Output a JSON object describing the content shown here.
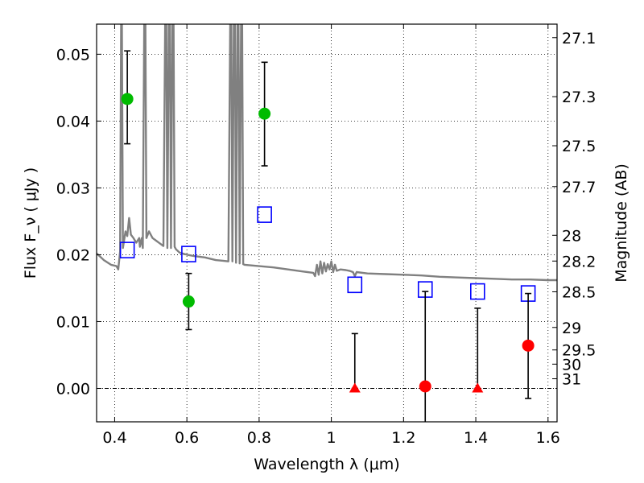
{
  "chart_data": {
    "type": "scatter",
    "xlabel": "Wavelength  λ (μm)",
    "ylabel": "Flux  F_ν  ( μJy )",
    "y2label": "Magnitude (AB)",
    "xlim": [
      0.35,
      1.625
    ],
    "ylim": [
      -0.005,
      0.0545
    ],
    "x_ticks": [
      "0.4",
      "0.6",
      "0.8",
      "1",
      "1.2",
      "1.4",
      "1.6"
    ],
    "x_tick_values": [
      0.4,
      0.6,
      0.8,
      1.0,
      1.2,
      1.4,
      1.6
    ],
    "y_ticks": [
      "0.00",
      "0.01",
      "0.02",
      "0.03",
      "0.04",
      "0.05"
    ],
    "y_tick_values": [
      0.0,
      0.01,
      0.02,
      0.03,
      0.04,
      0.05
    ],
    "y2_ticks": [
      {
        "label": "27.1",
        "mag": 27.1
      },
      {
        "label": "27.3",
        "mag": 27.3
      },
      {
        "label": "27.5",
        "mag": 27.5
      },
      {
        "label": "27.7",
        "mag": 27.7
      },
      {
        "label": "28",
        "mag": 28.0
      },
      {
        "label": "28.2",
        "mag": 28.2
      },
      {
        "label": "28.5",
        "mag": 28.5
      },
      {
        "label": "29",
        "mag": 29.0
      },
      {
        "label": "29.5",
        "mag": 29.5
      },
      {
        "label": "30",
        "mag": 30.0
      },
      {
        "label": "31",
        "mag": 31.0
      }
    ],
    "grid": true,
    "colors": {
      "spectrum": "#808080",
      "model": "#0000ff",
      "detection": "#00bb00",
      "non_detection": "#ff0000",
      "errorbar": "#000000"
    },
    "series": [
      {
        "kind": "line",
        "points": [
          [
            0.35,
            0.0202
          ],
          [
            0.37,
            0.0192
          ],
          [
            0.39,
            0.0185
          ],
          [
            0.405,
            0.0183
          ],
          [
            0.41,
            0.0178
          ],
          [
            0.415,
            0.0205
          ],
          [
            0.418,
            0.055
          ],
          [
            0.42,
            0.055
          ],
          [
            0.423,
            0.021
          ],
          [
            0.43,
            0.0235
          ],
          [
            0.435,
            0.0228
          ],
          [
            0.44,
            0.0255
          ],
          [
            0.445,
            0.023
          ],
          [
            0.452,
            0.0225
          ],
          [
            0.46,
            0.0218
          ],
          [
            0.468,
            0.0225
          ],
          [
            0.47,
            0.0212
          ],
          [
            0.475,
            0.0225
          ],
          [
            0.478,
            0.021
          ],
          [
            0.482,
            0.055
          ],
          [
            0.485,
            0.055
          ],
          [
            0.488,
            0.0225
          ],
          [
            0.495,
            0.0235
          ],
          [
            0.505,
            0.0225
          ],
          [
            0.515,
            0.0221
          ],
          [
            0.525,
            0.0217
          ],
          [
            0.535,
            0.0213
          ],
          [
            0.54,
            0.055
          ],
          [
            0.543,
            0.055
          ],
          [
            0.546,
            0.021
          ],
          [
            0.55,
            0.055
          ],
          [
            0.553,
            0.055
          ],
          [
            0.556,
            0.021
          ],
          [
            0.56,
            0.055
          ],
          [
            0.563,
            0.055
          ],
          [
            0.566,
            0.0212
          ],
          [
            0.57,
            0.0208
          ],
          [
            0.58,
            0.0203
          ],
          [
            0.6,
            0.02
          ],
          [
            0.62,
            0.0198
          ],
          [
            0.65,
            0.0196
          ],
          [
            0.68,
            0.0192
          ],
          [
            0.7,
            0.0191
          ],
          [
            0.715,
            0.019
          ],
          [
            0.72,
            0.055
          ],
          [
            0.723,
            0.055
          ],
          [
            0.726,
            0.019
          ],
          [
            0.73,
            0.055
          ],
          [
            0.733,
            0.055
          ],
          [
            0.736,
            0.0188
          ],
          [
            0.74,
            0.055
          ],
          [
            0.743,
            0.055
          ],
          [
            0.746,
            0.0187
          ],
          [
            0.75,
            0.055
          ],
          [
            0.753,
            0.055
          ],
          [
            0.756,
            0.0186
          ],
          [
            0.76,
            0.0185
          ],
          [
            0.8,
            0.0183
          ],
          [
            0.84,
            0.0181
          ],
          [
            0.88,
            0.0178
          ],
          [
            0.92,
            0.0175
          ],
          [
            0.95,
            0.0173
          ],
          [
            0.955,
            0.0168
          ],
          [
            0.96,
            0.0185
          ],
          [
            0.965,
            0.017
          ],
          [
            0.97,
            0.019
          ],
          [
            0.975,
            0.0172
          ],
          [
            0.98,
            0.0188
          ],
          [
            0.985,
            0.0175
          ],
          [
            0.99,
            0.0186
          ],
          [
            0.995,
            0.0178
          ],
          [
            1.0,
            0.019
          ],
          [
            1.005,
            0.0174
          ],
          [
            1.01,
            0.0185
          ],
          [
            1.015,
            0.0176
          ],
          [
            1.025,
            0.0178
          ],
          [
            1.04,
            0.0177
          ],
          [
            1.05,
            0.0176
          ],
          [
            1.06,
            0.0174
          ],
          [
            1.065,
            0.0168
          ],
          [
            1.07,
            0.0174
          ],
          [
            1.1,
            0.0172
          ],
          [
            1.15,
            0.0171
          ],
          [
            1.2,
            0.017
          ],
          [
            1.25,
            0.0169
          ],
          [
            1.3,
            0.0167
          ],
          [
            1.35,
            0.0166
          ],
          [
            1.4,
            0.0165
          ],
          [
            1.45,
            0.0164
          ],
          [
            1.5,
            0.0163
          ],
          [
            1.55,
            0.0163
          ],
          [
            1.6,
            0.0162
          ],
          [
            1.625,
            0.0162
          ]
        ]
      },
      {
        "kind": "model",
        "x": [
          0.435,
          0.605,
          0.815,
          1.065,
          1.26,
          1.405,
          1.545
        ],
        "y": [
          0.0207,
          0.0201,
          0.026,
          0.0155,
          0.0148,
          0.0145,
          0.0142
        ]
      },
      {
        "kind": "detection",
        "x": [
          0.435,
          0.605,
          0.815,
          1.26,
          1.545
        ],
        "y": [
          0.0433,
          0.013,
          0.0411,
          0.0003,
          0.0064
        ],
        "yerr_low": [
          0.0067,
          0.0042,
          0.0078,
          0.0075,
          0.0079
        ],
        "yerr_high": [
          0.0072,
          0.0042,
          0.0077,
          0.0142,
          0.0078
        ]
      },
      {
        "kind": "non_detection",
        "x": [
          1.065,
          1.405
        ],
        "y": [
          0.0,
          0.0
        ],
        "yerr_high": [
          0.0082,
          0.012
        ]
      }
    ]
  }
}
